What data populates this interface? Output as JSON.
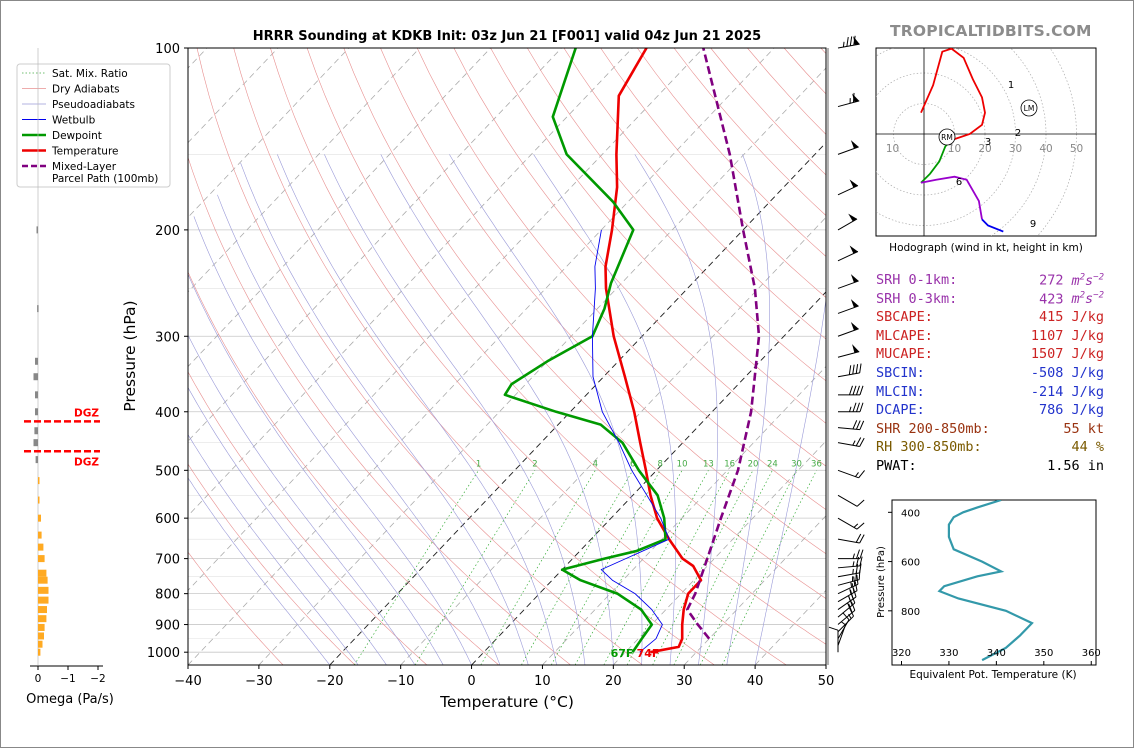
{
  "title": "HRRR Sounding at KDKB Init: 03z Jun 21 [F001] valid 04z Jun 21 2025",
  "brand": "TROPICALTIDBITS.COM",
  "colors": {
    "temperature": "#ee0000",
    "dewpoint": "#009900",
    "wetbulb": "#0000ee",
    "parcel": "#800080",
    "dgz": "#ff0000",
    "theta_e": "#3399aa",
    "omega": "#ffaa22"
  },
  "legend": [
    "Sat. Mix. Ratio",
    "Dry Adiabats",
    "Pseudoadiabats",
    "Wetbulb",
    "Dewpoint",
    "Temperature",
    "Mixed-Layer\nParcel Path (100mb)"
  ],
  "surface": {
    "dewpoint_label": "67F",
    "temperature_label": "74F"
  },
  "dgz_label": "DGZ",
  "mix_ratio_labels": [
    "1",
    "2",
    "4",
    "6",
    "8",
    "10",
    "13",
    "16",
    "20",
    "24",
    "30",
    "36"
  ],
  "chart_data": [
    {
      "type": "line",
      "name": "skewt",
      "xlabel": "Temperature (°C)",
      "ylabel": "Pressure (hPa)",
      "xlim": [
        -40,
        50
      ],
      "ylim": [
        1050,
        100
      ],
      "x_ticks": [
        "−40",
        "−30",
        "−20",
        "−10",
        "0",
        "10",
        "20",
        "30",
        "40",
        "50"
      ],
      "y_ticks": [
        "100",
        "200",
        "300",
        "400",
        "500",
        "600",
        "700",
        "800",
        "900",
        "1000"
      ],
      "series": [
        {
          "name": "Temperature",
          "points": [
            [
              1000,
              23.5
            ],
            [
              980,
              26.8
            ],
            [
              950,
              26.2
            ],
            [
              900,
              24.3
            ],
            [
              850,
              22.5
            ],
            [
              800,
              21.0
            ],
            [
              760,
              21.0
            ],
            [
              720,
              18.0
            ],
            [
              700,
              15.5
            ],
            [
              650,
              11.0
            ],
            [
              600,
              6.5
            ],
            [
              550,
              2.5
            ],
            [
              500,
              -1.5
            ],
            [
              450,
              -6.0
            ],
            [
              400,
              -11.0
            ],
            [
              350,
              -17.0
            ],
            [
              300,
              -24.0
            ],
            [
              250,
              -31.5
            ],
            [
              230,
              -34.5
            ],
            [
              200,
              -38.5
            ],
            [
              170,
              -43.5
            ],
            [
              150,
              -48.0
            ],
            [
              120,
              -55.5
            ],
            [
              100,
              -58.0
            ]
          ]
        },
        {
          "name": "Dewpoint",
          "points": [
            [
              1000,
              21.0
            ],
            [
              950,
              20.5
            ],
            [
              900,
              20.0
            ],
            [
              850,
              16.5
            ],
            [
              800,
              11.0
            ],
            [
              760,
              4.0
            ],
            [
              730,
              0.0
            ],
            [
              700,
              4.5
            ],
            [
              680,
              8.0
            ],
            [
              650,
              10.5
            ],
            [
              600,
              7.5
            ],
            [
              550,
              3.5
            ],
            [
              500,
              -2.5
            ],
            [
              450,
              -8.5
            ],
            [
              420,
              -14.0
            ],
            [
              400,
              -22.0
            ],
            [
              375,
              -31.5
            ],
            [
              360,
              -32.0
            ],
            [
              330,
              -30.0
            ],
            [
              300,
              -27.0
            ],
            [
              270,
              -29.0
            ],
            [
              245,
              -31.5
            ],
            [
              200,
              -35.5
            ],
            [
              180,
              -42.0
            ],
            [
              150,
              -55.0
            ],
            [
              130,
              -62.0
            ],
            [
              100,
              -68.0
            ]
          ]
        },
        {
          "name": "Wetbulb",
          "points": [
            [
              1000,
              22.0
            ],
            [
              950,
              22.5
            ],
            [
              900,
              21.5
            ],
            [
              850,
              18.0
            ],
            [
              800,
              13.5
            ],
            [
              760,
              8.5
            ],
            [
              730,
              5.5
            ],
            [
              700,
              7.5
            ],
            [
              650,
              11.0
            ],
            [
              600,
              7.0
            ],
            [
              550,
              2.0
            ],
            [
              500,
              -3.5
            ],
            [
              450,
              -9.0
            ],
            [
              400,
              -15.5
            ],
            [
              350,
              -21.5
            ],
            [
              300,
              -27.0
            ],
            [
              250,
              -33.0
            ],
            [
              230,
              -36.0
            ],
            [
              200,
              -40.0
            ]
          ]
        },
        {
          "name": "Mixed-Layer Parcel Path (100mb)",
          "points": [
            [
              950,
              30.0
            ],
            [
              900,
              26.5
            ],
            [
              850,
              23.0
            ],
            [
              800,
              22.0
            ],
            [
              700,
              19.0
            ],
            [
              600,
              15.5
            ],
            [
              500,
              11.5
            ],
            [
              400,
              5.5
            ],
            [
              300,
              -3.5
            ],
            [
              250,
              -10.5
            ],
            [
              200,
              -20.0
            ],
            [
              150,
              -32.0
            ],
            [
              100,
              -50.0
            ]
          ]
        }
      ]
    },
    {
      "type": "line",
      "name": "hodograph",
      "caption": "Hodograph (wind in kt, height in km)",
      "ring_labels": [
        "10",
        "10",
        "20",
        "30",
        "40",
        "50"
      ],
      "height_labels": [
        "1",
        "2",
        "3",
        "6",
        "9"
      ],
      "markers": [
        "RM",
        "LM"
      ],
      "points": [
        [
          -1,
          7
        ],
        [
          3,
          16
        ],
        [
          6,
          27
        ],
        [
          9,
          28
        ],
        [
          13,
          25
        ],
        [
          16,
          18
        ],
        [
          19,
          12
        ],
        [
          20,
          7
        ],
        [
          19,
          3
        ],
        [
          15,
          0
        ],
        [
          9,
          -2
        ],
        [
          7,
          -4
        ],
        [
          5,
          -9
        ],
        [
          2,
          -13
        ],
        [
          -1,
          -16
        ],
        [
          4,
          -15
        ],
        [
          10,
          -14
        ],
        [
          14,
          -15
        ],
        [
          18,
          -22
        ],
        [
          19,
          -28
        ],
        [
          21,
          -30
        ],
        [
          26,
          -32
        ]
      ]
    },
    {
      "type": "line",
      "name": "theta-e",
      "xlabel": "Equivalent Pot. Temperature (K)",
      "ylabel": "Pressure (hPa)",
      "xlim": [
        318,
        361
      ],
      "ylim": [
        1020,
        350
      ],
      "x_ticks": [
        "320",
        "330",
        "340",
        "350",
        "360"
      ],
      "y_ticks": [
        "400",
        "600",
        "800"
      ],
      "points": [
        [
          350,
          341
        ],
        [
          380,
          336
        ],
        [
          400,
          333
        ],
        [
          420,
          331
        ],
        [
          450,
          330
        ],
        [
          500,
          330
        ],
        [
          550,
          331
        ],
        [
          600,
          337
        ],
        [
          640,
          341
        ],
        [
          660,
          336
        ],
        [
          700,
          329
        ],
        [
          720,
          328
        ],
        [
          750,
          332
        ],
        [
          800,
          342
        ],
        [
          850,
          347.5
        ],
        [
          900,
          345
        ],
        [
          950,
          342
        ],
        [
          1000,
          337
        ]
      ]
    },
    {
      "type": "bar",
      "name": "omega",
      "xlabel": "Omega (Pa/s)",
      "x_ticks": [
        "0",
        "−1",
        "−2"
      ],
      "note": "omega per pressure level",
      "bars": [
        [
          200,
          0.05
        ],
        [
          270,
          0.03
        ],
        [
          330,
          0.1
        ],
        [
          350,
          0.15
        ],
        [
          375,
          0.1
        ],
        [
          400,
          0.1
        ],
        [
          430,
          0.12
        ],
        [
          450,
          0.15
        ],
        [
          480,
          0.08
        ],
        [
          520,
          -0.03
        ],
        [
          560,
          -0.05
        ],
        [
          600,
          -0.1
        ],
        [
          640,
          -0.12
        ],
        [
          670,
          -0.18
        ],
        [
          700,
          -0.22
        ],
        [
          740,
          -0.28
        ],
        [
          760,
          -0.32
        ],
        [
          790,
          -0.35
        ],
        [
          820,
          -0.35
        ],
        [
          850,
          -0.3
        ],
        [
          880,
          -0.28
        ],
        [
          910,
          -0.22
        ],
        [
          940,
          -0.2
        ],
        [
          970,
          -0.15
        ],
        [
          1000,
          -0.08
        ]
      ]
    }
  ],
  "winds": [
    {
      "p": 100,
      "dir": 260,
      "spd": 85
    },
    {
      "p": 125,
      "dir": 255,
      "spd": 65
    },
    {
      "p": 150,
      "dir": 250,
      "spd": 50
    },
    {
      "p": 175,
      "dir": 245,
      "spd": 50
    },
    {
      "p": 200,
      "dir": 240,
      "spd": 50
    },
    {
      "p": 225,
      "dir": 245,
      "spd": 50
    },
    {
      "p": 250,
      "dir": 250,
      "spd": 50
    },
    {
      "p": 275,
      "dir": 250,
      "spd": 50
    },
    {
      "p": 300,
      "dir": 250,
      "spd": 50
    },
    {
      "p": 325,
      "dir": 255,
      "spd": 50
    },
    {
      "p": 350,
      "dir": 260,
      "spd": 40
    },
    {
      "p": 375,
      "dir": 270,
      "spd": 40
    },
    {
      "p": 400,
      "dir": 270,
      "spd": 35
    },
    {
      "p": 425,
      "dir": 275,
      "spd": 30
    },
    {
      "p": 450,
      "dir": 280,
      "spd": 25
    },
    {
      "p": 500,
      "dir": 290,
      "spd": 15
    },
    {
      "p": 550,
      "dir": 300,
      "spd": 10
    },
    {
      "p": 600,
      "dir": 300,
      "spd": 15
    },
    {
      "p": 650,
      "dir": 280,
      "spd": 20
    },
    {
      "p": 700,
      "dir": 270,
      "spd": 25
    },
    {
      "p": 725,
      "dir": 265,
      "spd": 25
    },
    {
      "p": 750,
      "dir": 260,
      "spd": 25
    },
    {
      "p": 775,
      "dir": 255,
      "spd": 25
    },
    {
      "p": 800,
      "dir": 245,
      "spd": 25
    },
    {
      "p": 825,
      "dir": 240,
      "spd": 25
    },
    {
      "p": 850,
      "dir": 235,
      "spd": 25
    },
    {
      "p": 875,
      "dir": 230,
      "spd": 25
    },
    {
      "p": 900,
      "dir": 230,
      "spd": 20
    },
    {
      "p": 925,
      "dir": 225,
      "spd": 15
    },
    {
      "p": 950,
      "dir": 210,
      "spd": 10
    },
    {
      "p": 975,
      "dir": 200,
      "spd": 5
    },
    {
      "p": 1000,
      "dir": 180,
      "spd": 10
    }
  ],
  "params": [
    {
      "label": "SRH 0-1km:",
      "value": "272",
      "unit": "m2s-2",
      "color": "#9932aa"
    },
    {
      "label": "SRH 0-3km:",
      "value": "423",
      "unit": "m2s-2",
      "color": "#9932aa"
    },
    {
      "label": "SBCAPE:",
      "value": "415 J/kg",
      "color": "#cc2222"
    },
    {
      "label": "MLCAPE:",
      "value": "1107 J/kg",
      "color": "#cc2222"
    },
    {
      "label": "MUCAPE:",
      "value": "1507 J/kg",
      "color": "#cc2222"
    },
    {
      "label": "SBCIN:",
      "value": "-508 J/kg",
      "color": "#2233cc"
    },
    {
      "label": "MLCIN:",
      "value": "-214 J/kg",
      "color": "#2233cc"
    },
    {
      "label": "DCAPE:",
      "value": "786 J/kg",
      "color": "#2233cc"
    },
    {
      "label": "SHR 200-850mb:",
      "value": "55 kt",
      "color": "#993311"
    },
    {
      "label": "RH 300-850mb:",
      "value": "44 %",
      "color": "#7a5a00"
    },
    {
      "label": "PWAT:",
      "value": "1.56 in",
      "color": "#000000"
    }
  ]
}
